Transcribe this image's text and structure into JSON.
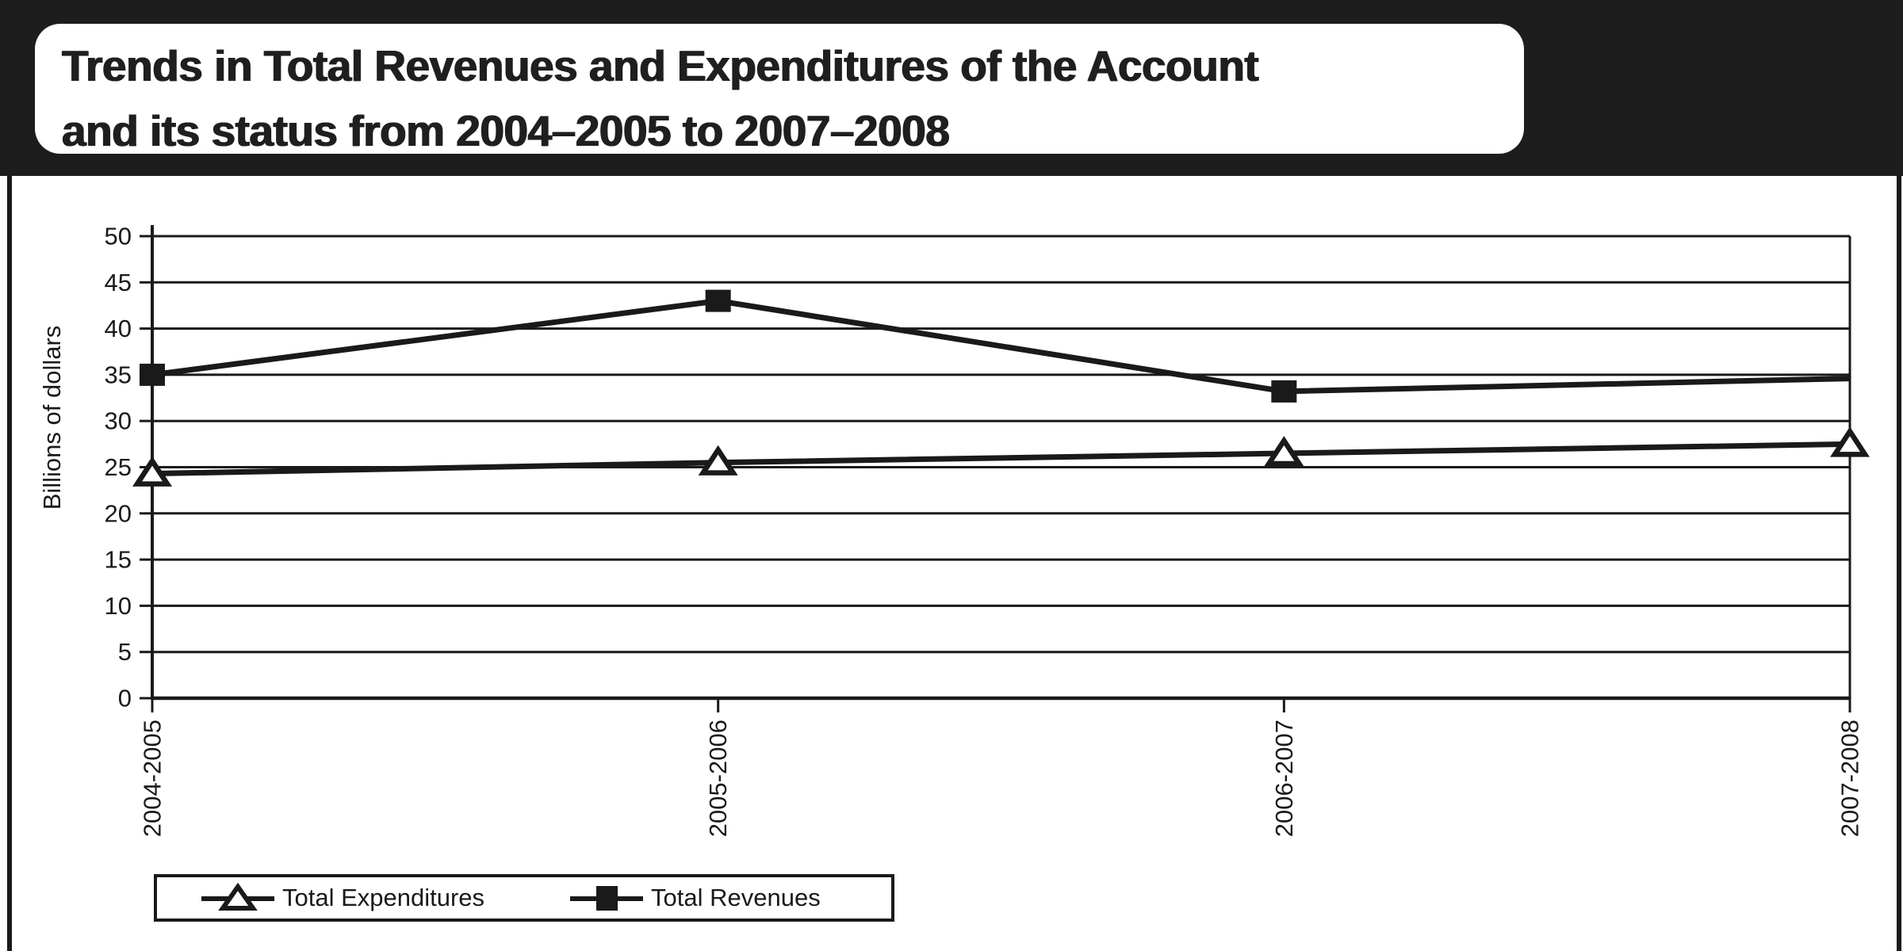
{
  "colors": {
    "ink": "#1a1a1a",
    "header_bg": "#1d1d1d",
    "paper": "#ffffff"
  },
  "header": {
    "title_line1": "Trends in Total Revenues and Expenditures of the Account",
    "title_line2": "and its status from 2004–2005 to 2007–2008"
  },
  "chart_data": {
    "type": "line",
    "title": "Trends in Total Revenues and Expenditures of the Account and its status from 2004–2005 to 2007–2008",
    "categories": [
      "2004-2005",
      "2005-2006",
      "2006-2007",
      "2007-2008"
    ],
    "series": [
      {
        "name": "Total Expenditures",
        "marker": "open-triangle",
        "values": [
          24.3,
          25.5,
          26.5,
          27.5
        ],
        "markers_visible": [
          true,
          true,
          true,
          true
        ]
      },
      {
        "name": "Total Revenues",
        "marker": "filled-square",
        "values": [
          35,
          43,
          33.2,
          34.6
        ],
        "markers_visible": [
          true,
          true,
          true,
          false
        ]
      }
    ],
    "xlabel": "",
    "ylabel": "Billions of dollars",
    "ylim": [
      0,
      50
    ],
    "yticks": [
      0,
      5,
      10,
      15,
      20,
      25,
      30,
      35,
      40,
      45,
      50
    ],
    "grid": "horizontal",
    "legend_position": "bottom-left",
    "line_color": "#1a1a1a"
  },
  "legend": {
    "items": [
      {
        "label": "Total Expenditures",
        "marker": "open-triangle"
      },
      {
        "label": "Total Revenues",
        "marker": "filled-square"
      }
    ]
  }
}
